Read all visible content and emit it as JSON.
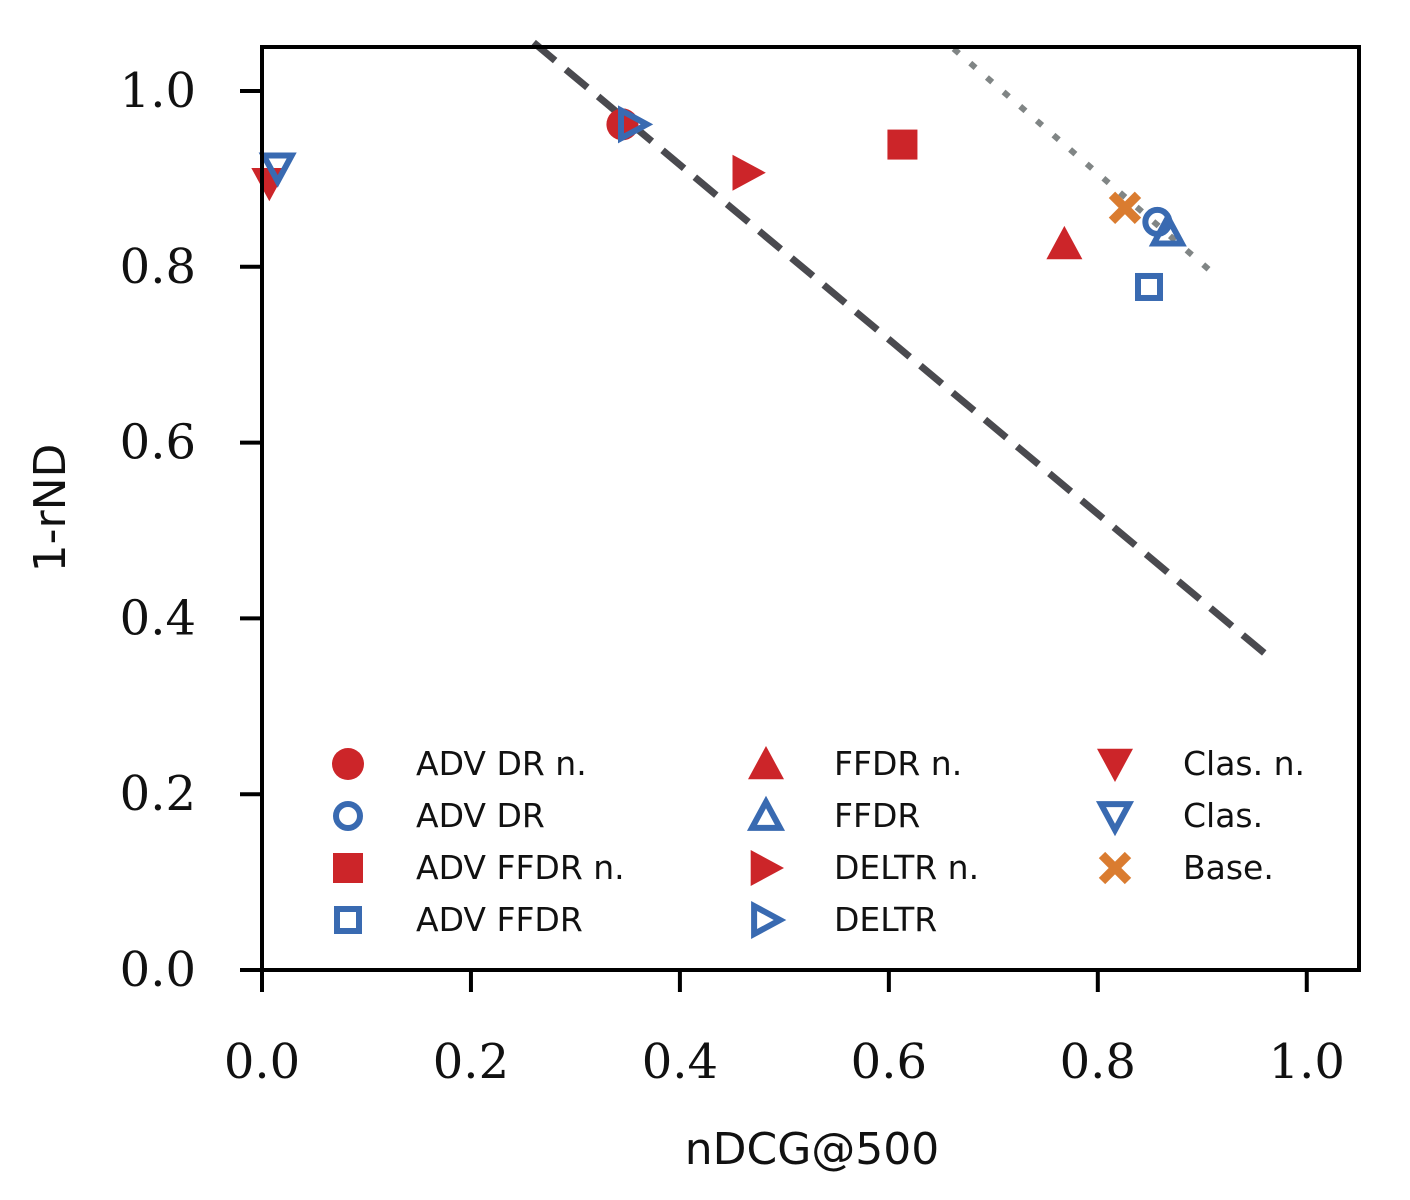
{
  "chart_data": {
    "type": "scatter",
    "xlabel": "nDCG@500",
    "ylabel": "1-rND",
    "xlim": [
      0.0,
      1.05
    ],
    "ylim": [
      0.0,
      1.05
    ],
    "xticks": [
      "0.0",
      "0.2",
      "0.4",
      "0.6",
      "0.8",
      "1.0"
    ],
    "yticks": [
      "0.0",
      "0.2",
      "0.4",
      "0.6",
      "0.8",
      "1.0"
    ],
    "grid": false,
    "legend_position": "lower-center",
    "colors": {
      "red": "#cc2529",
      "blue": "#396ab1",
      "orange": "#da7c30",
      "dashed_line": "#4a4a4f",
      "dotted_line": "#808585"
    },
    "series": [
      {
        "name": "ADV DR n.",
        "marker": "circle",
        "fill": true,
        "color": "#cc2529",
        "x": 0.345,
        "y": 0.962
      },
      {
        "name": "ADV DR",
        "marker": "circle",
        "fill": false,
        "color": "#396ab1",
        "x": 0.857,
        "y": 0.851
      },
      {
        "name": "ADV FFDR n.",
        "marker": "square",
        "fill": true,
        "color": "#cc2529",
        "x": 0.613,
        "y": 0.939
      },
      {
        "name": "ADV FFDR",
        "marker": "square",
        "fill": false,
        "color": "#396ab1",
        "x": 0.849,
        "y": 0.777
      },
      {
        "name": "FFDR n.",
        "marker": "triangle-up",
        "fill": true,
        "color": "#cc2529",
        "x": 0.768,
        "y": 0.826
      },
      {
        "name": "FFDR",
        "marker": "triangle-up",
        "fill": false,
        "color": "#396ab1",
        "x": 0.867,
        "y": 0.84
      },
      {
        "name": "DELTR n.",
        "marker": "triangle-right",
        "fill": true,
        "color": "#cc2529",
        "x": 0.465,
        "y": 0.907
      },
      {
        "name": "DELTR",
        "marker": "triangle-right",
        "fill": false,
        "color": "#396ab1",
        "x": 0.355,
        "y": 0.962
      },
      {
        "name": "Clas. n.",
        "marker": "triangle-down",
        "fill": true,
        "color": "#cc2529",
        "x": 0.007,
        "y": 0.895
      },
      {
        "name": "Clas.",
        "marker": "triangle-down",
        "fill": false,
        "color": "#396ab1",
        "x": 0.015,
        "y": 0.913
      },
      {
        "name": "Base.",
        "marker": "x",
        "fill": true,
        "color": "#da7c30",
        "x": 0.826,
        "y": 0.867
      }
    ],
    "reference_lines": [
      {
        "style": "dashed",
        "color": "#4a4a4f",
        "x": [
          0.26,
          0.965
        ],
        "y": [
          1.055,
          0.355
        ]
      },
      {
        "style": "dotted",
        "color": "#808585",
        "x": [
          0.662,
          0.912
        ],
        "y": [
          1.048,
          0.791
        ]
      }
    ]
  }
}
